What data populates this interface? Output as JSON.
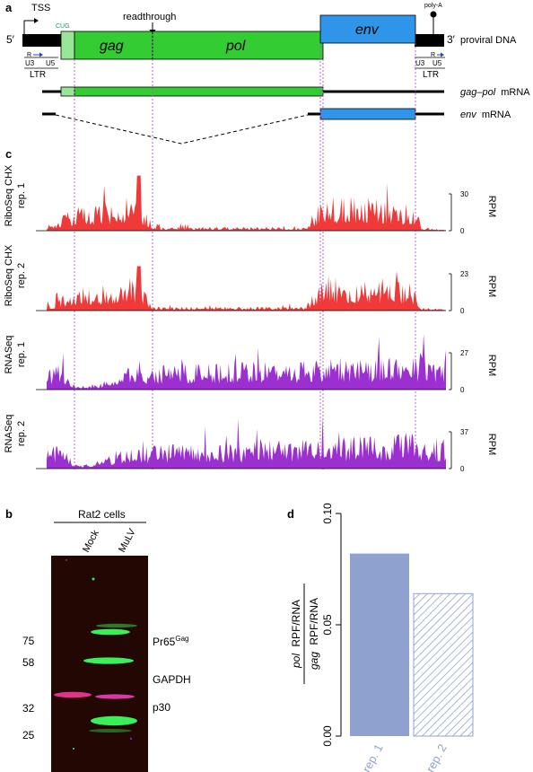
{
  "panels": {
    "a": {
      "letter": "a",
      "tss": "TSS",
      "cug": "CUG",
      "readthrough": "readthrough",
      "poly_a": "poly-A",
      "five_prime": "5′",
      "three_prime": "3′",
      "gag": "gag",
      "pol": "pol",
      "env": "env",
      "proviral": "proviral DNA",
      "gagpol_mrna_gene": "gag–pol",
      "mrna_word": "mRNA",
      "env_mrna_gene": "env",
      "r": "R",
      "u3": "U3",
      "u5": "U5",
      "ltr": "LTR",
      "colors": {
        "coding": "#33cc33",
        "cug_ext": "#99e699",
        "env_box": "#2e95e8",
        "ltr": "#000000",
        "guide": "#b355d4"
      }
    },
    "c": {
      "letter": "c",
      "unit": "RPM",
      "tracks": [
        {
          "label1": "RiboSeq CHX",
          "label2": "rep. 1",
          "max": "30",
          "zero": "0",
          "color": "#f03a3a"
        },
        {
          "label1": "RiboSeq CHX",
          "label2": "rep. 2",
          "max": "23",
          "zero": "0",
          "color": "#f03a3a"
        },
        {
          "label1": "RNASeq",
          "label2": "rep. 1",
          "max": "27",
          "zero": "0",
          "color": "#9b2fd0"
        },
        {
          "label1": "RNASeq",
          "label2": "rep. 2",
          "max": "37",
          "zero": "0",
          "color": "#9b2fd0"
        }
      ]
    },
    "b": {
      "letter": "b",
      "cells": "Rat2 cells",
      "lanes": [
        "Mock",
        "MuLV"
      ],
      "markers": [
        "75",
        "58",
        "32",
        "25"
      ],
      "bands": {
        "pr65": "Pr65",
        "pr65_sup": "Gag",
        "gapdh": "GAPDH",
        "p30": "p30"
      }
    }
  },
  "chart_data": {
    "type": "bar",
    "title": "d",
    "categories": [
      "rep. 1",
      "rep. 2"
    ],
    "values": [
      0.082,
      0.064
    ],
    "ylim": [
      0,
      0.1
    ],
    "yticks": [
      "0.00",
      "0.05",
      "0.10"
    ],
    "ylabel_num": "pol RPF/RNA",
    "ylabel_den": "gag RPF/RNA",
    "ylabel_num_gene": "pol",
    "ylabel_num_rest": "RPF/RNA",
    "ylabel_den_gene": "gag",
    "ylabel_den_rest": "RPF/RNA",
    "fills": [
      "solid",
      "hatched"
    ],
    "colors": [
      "#8fa2cf",
      "#8fa2cf"
    ]
  }
}
